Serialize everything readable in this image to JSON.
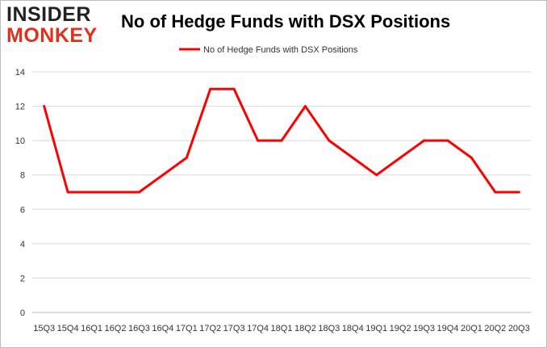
{
  "logo": {
    "line1": "INSIDER",
    "line2": "MONKEY"
  },
  "chart_data": {
    "type": "line",
    "title": "No of Hedge Funds with DSX Positions",
    "xlabel": "",
    "ylabel": "",
    "categories": [
      "15Q3",
      "15Q4",
      "16Q1",
      "16Q2",
      "16Q3",
      "16Q4",
      "17Q1",
      "17Q2",
      "17Q3",
      "17Q4",
      "18Q1",
      "18Q2",
      "18Q3",
      "18Q4",
      "19Q1",
      "19Q2",
      "19Q3",
      "19Q4",
      "20Q1",
      "20Q2",
      "20Q3"
    ],
    "series": [
      {
        "name": "No of Hedge Funds with DSX Positions",
        "values": [
          12,
          7,
          7,
          7,
          7,
          8,
          9,
          13,
          13,
          10,
          10,
          12,
          10,
          9,
          8,
          9,
          10,
          10,
          9,
          7,
          7
        ]
      }
    ],
    "ylim": [
      0,
      14
    ],
    "yticks": [
      0,
      2,
      4,
      6,
      8,
      10,
      12,
      14
    ],
    "grid": true,
    "legend": "top-center",
    "line_color": "#ff0000",
    "grid_color": "#d9d9d9"
  }
}
